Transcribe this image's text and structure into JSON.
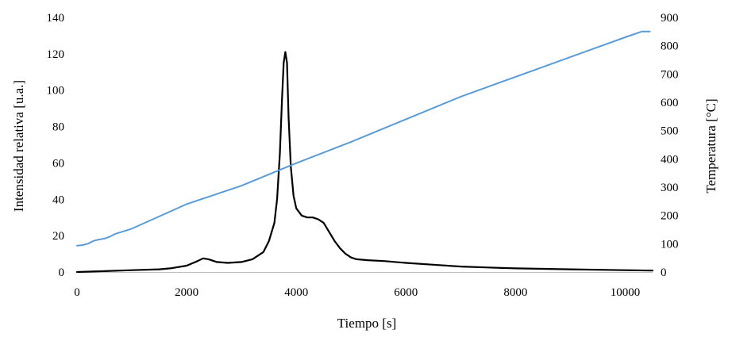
{
  "chart_data": {
    "type": "line",
    "xlabel": "Tiempo [s]",
    "ylabel": "Intensidad relativa  [u.a.]",
    "y2label": "Temperatura [°C]",
    "xlim": [
      0,
      10500
    ],
    "ylim": [
      0,
      140
    ],
    "y2lim": [
      0,
      900
    ],
    "xticks": [
      "0",
      "2000",
      "4000",
      "6000",
      "8000",
      "10000"
    ],
    "yticks": [
      "0",
      "20",
      "40",
      "60",
      "80",
      "100",
      "120",
      "140"
    ],
    "y2ticks": [
      "0",
      "100",
      "200",
      "300",
      "400",
      "500",
      "600",
      "700",
      "800",
      "900"
    ],
    "grid": false,
    "legend": "none",
    "series": [
      {
        "axis": "left",
        "color": "#000000",
        "x": [
          0,
          500,
          1000,
          1500,
          1700,
          2000,
          2200,
          2300,
          2400,
          2550,
          2750,
          3000,
          3200,
          3400,
          3500,
          3600,
          3650,
          3700,
          3740,
          3770,
          3800,
          3830,
          3860,
          3900,
          3950,
          4000,
          4100,
          4200,
          4300,
          4400,
          4500,
          4600,
          4700,
          4800,
          4900,
          5000,
          5100,
          5300,
          5600,
          6000,
          6500,
          7000,
          7500,
          8000,
          9000,
          10000,
          10500
        ],
        "values": [
          0,
          0.5,
          1,
          1.5,
          2,
          3.5,
          6,
          7.5,
          7,
          5.5,
          5,
          5.5,
          7,
          11,
          17,
          27,
          40,
          65,
          95,
          115,
          121,
          115,
          85,
          58,
          42,
          35,
          31,
          30,
          30,
          29,
          27,
          22,
          17,
          13,
          10,
          8,
          7,
          6.5,
          6,
          5,
          4,
          3,
          2.5,
          2,
          1.5,
          1,
          0.8
        ]
      },
      {
        "axis": "right",
        "color": "#5b9bd5",
        "x": [
          0,
          100,
          200,
          300,
          400,
          500,
          600,
          700,
          1000,
          2000,
          3000,
          4000,
          5000,
          6000,
          7000,
          8000,
          9000,
          10000,
          10300,
          10400,
          10450
        ],
        "values": [
          93,
          95,
          100,
          110,
          115,
          118,
          125,
          135,
          153,
          240,
          305,
          385,
          460,
          540,
          620,
          690,
          760,
          830,
          850,
          850,
          850
        ]
      }
    ]
  }
}
